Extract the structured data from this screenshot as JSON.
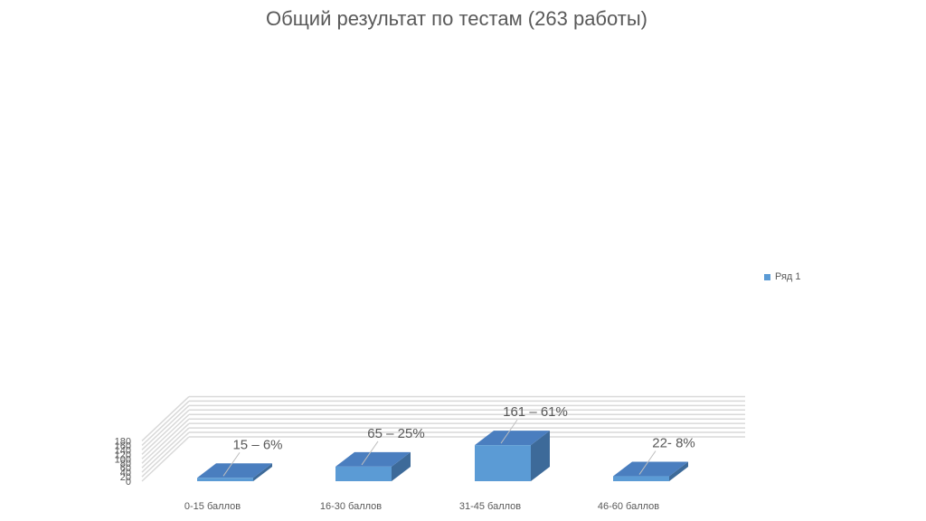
{
  "chart_data": {
    "type": "bar",
    "style": "3d-column",
    "title": "Общий результат по тестам (263 работы)",
    "categories": [
      "0-15 баллов",
      "16-30 баллов",
      "31-45 баллов",
      "46-60 баллов"
    ],
    "series": [
      {
        "name": "Ряд 1",
        "values": [
          15,
          65,
          161,
          22
        ],
        "data_labels": [
          "15 – 6%",
          "65 – 25%",
          "161 – 61%",
          "22- 8%"
        ]
      }
    ],
    "yticks": [
      "0",
      "20",
      "40",
      "60",
      "80",
      "100",
      "120",
      "140",
      "160",
      "180"
    ],
    "ylim": [
      0,
      180
    ],
    "grid": true,
    "legend": "right",
    "colors": {
      "bar_front": "#5b9bd5",
      "bar_top": "#4a7ebf",
      "bar_side": "#3d6a99",
      "grid": "#d9d9d9",
      "text": "#595959"
    }
  }
}
